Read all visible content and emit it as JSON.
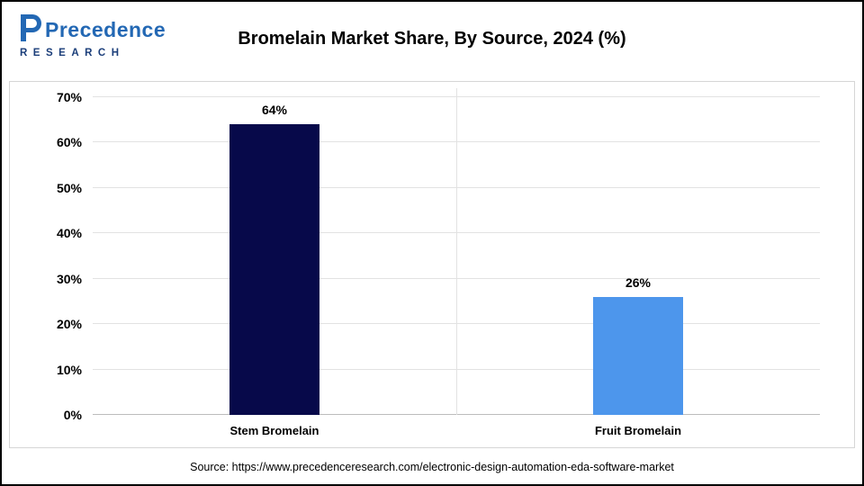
{
  "header": {
    "logo": {
      "text": "Precedence",
      "sub": "RESEARCH"
    },
    "title": "Bromelain Market Share, By Source, 2024 (%)"
  },
  "chart_data": {
    "type": "bar",
    "title": "Bromelain Market Share, By Source, 2024 (%)",
    "categories": [
      "Stem Bromelain",
      "Fruit Bromelain"
    ],
    "values": [
      64,
      26
    ],
    "value_labels": [
      "64%",
      "26%"
    ],
    "bar_colors": [
      "#07094a",
      "#4d96ec"
    ],
    "ylim": [
      0,
      70
    ],
    "ytick_step": 10,
    "ytick_labels": [
      "0%",
      "10%",
      "20%",
      "30%",
      "40%",
      "50%",
      "60%",
      "70%"
    ],
    "grid": true,
    "legend": "none",
    "xlabel": "",
    "ylabel": ""
  },
  "footer": {
    "source": "Source: https://www.precedenceresearch.com/electronic-design-automation-eda-software-market"
  }
}
